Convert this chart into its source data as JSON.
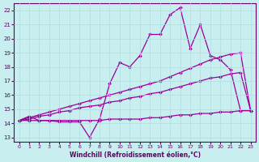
{
  "xlabel": "Windchill (Refroidissement éolien,°C)",
  "bg_color": "#c8eef0",
  "line_color": "#990099",
  "grid_color": "#b0dde0",
  "xlim": [
    -0.5,
    23.5
  ],
  "ylim": [
    12.7,
    22.5
  ],
  "xticks": [
    0,
    1,
    2,
    3,
    4,
    5,
    6,
    7,
    8,
    9,
    10,
    11,
    12,
    13,
    14,
    15,
    16,
    17,
    18,
    19,
    20,
    21,
    22,
    23
  ],
  "yticks": [
    13,
    14,
    15,
    16,
    17,
    18,
    19,
    20,
    21,
    22
  ],
  "curve_zigzag_x": [
    0,
    1,
    2,
    3,
    4,
    5,
    6,
    7,
    8,
    9,
    10,
    11,
    12,
    13,
    14,
    15,
    16,
    17,
    18,
    19,
    20,
    21,
    22,
    23
  ],
  "curve_zigzag_y": [
    14.2,
    14.5,
    14.2,
    14.2,
    14.1,
    14.1,
    14.1,
    13.0,
    14.3,
    16.8,
    18.3,
    18.0,
    18.8,
    20.3,
    20.3,
    21.7,
    22.2,
    19.3,
    21.0,
    18.8,
    18.5,
    17.8,
    14.9,
    14.9
  ],
  "curve_upper_x": [
    0,
    1,
    2,
    3,
    4,
    5,
    6,
    7,
    8,
    9,
    10,
    11,
    12,
    13,
    14,
    15,
    16,
    17,
    18,
    19,
    20,
    21,
    22,
    23
  ],
  "curve_upper_y": [
    14.2,
    14.4,
    14.6,
    14.8,
    15.0,
    15.2,
    15.4,
    15.6,
    15.8,
    16.0,
    16.2,
    16.4,
    16.6,
    16.8,
    17.0,
    17.3,
    17.6,
    17.9,
    18.2,
    18.5,
    18.7,
    18.9,
    19.0,
    14.9
  ],
  "curve_lower_x": [
    0,
    1,
    2,
    3,
    4,
    5,
    6,
    7,
    8,
    9,
    10,
    11,
    12,
    13,
    14,
    15,
    16,
    17,
    18,
    19,
    20,
    21,
    22,
    23
  ],
  "curve_lower_y": [
    14.2,
    14.3,
    14.5,
    14.6,
    14.8,
    14.9,
    15.1,
    15.2,
    15.3,
    15.5,
    15.6,
    15.8,
    15.9,
    16.1,
    16.2,
    16.4,
    16.6,
    16.8,
    17.0,
    17.2,
    17.3,
    17.5,
    17.6,
    14.9
  ],
  "curve_flat_x": [
    0,
    1,
    2,
    3,
    4,
    5,
    6,
    7,
    8,
    9,
    10,
    11,
    12,
    13,
    14,
    15,
    16,
    17,
    18,
    19,
    20,
    21,
    22,
    23
  ],
  "curve_flat_y": [
    14.2,
    14.2,
    14.2,
    14.2,
    14.2,
    14.2,
    14.2,
    14.2,
    14.2,
    14.3,
    14.3,
    14.3,
    14.3,
    14.4,
    14.4,
    14.5,
    14.6,
    14.6,
    14.7,
    14.7,
    14.8,
    14.8,
    14.9,
    14.9
  ]
}
